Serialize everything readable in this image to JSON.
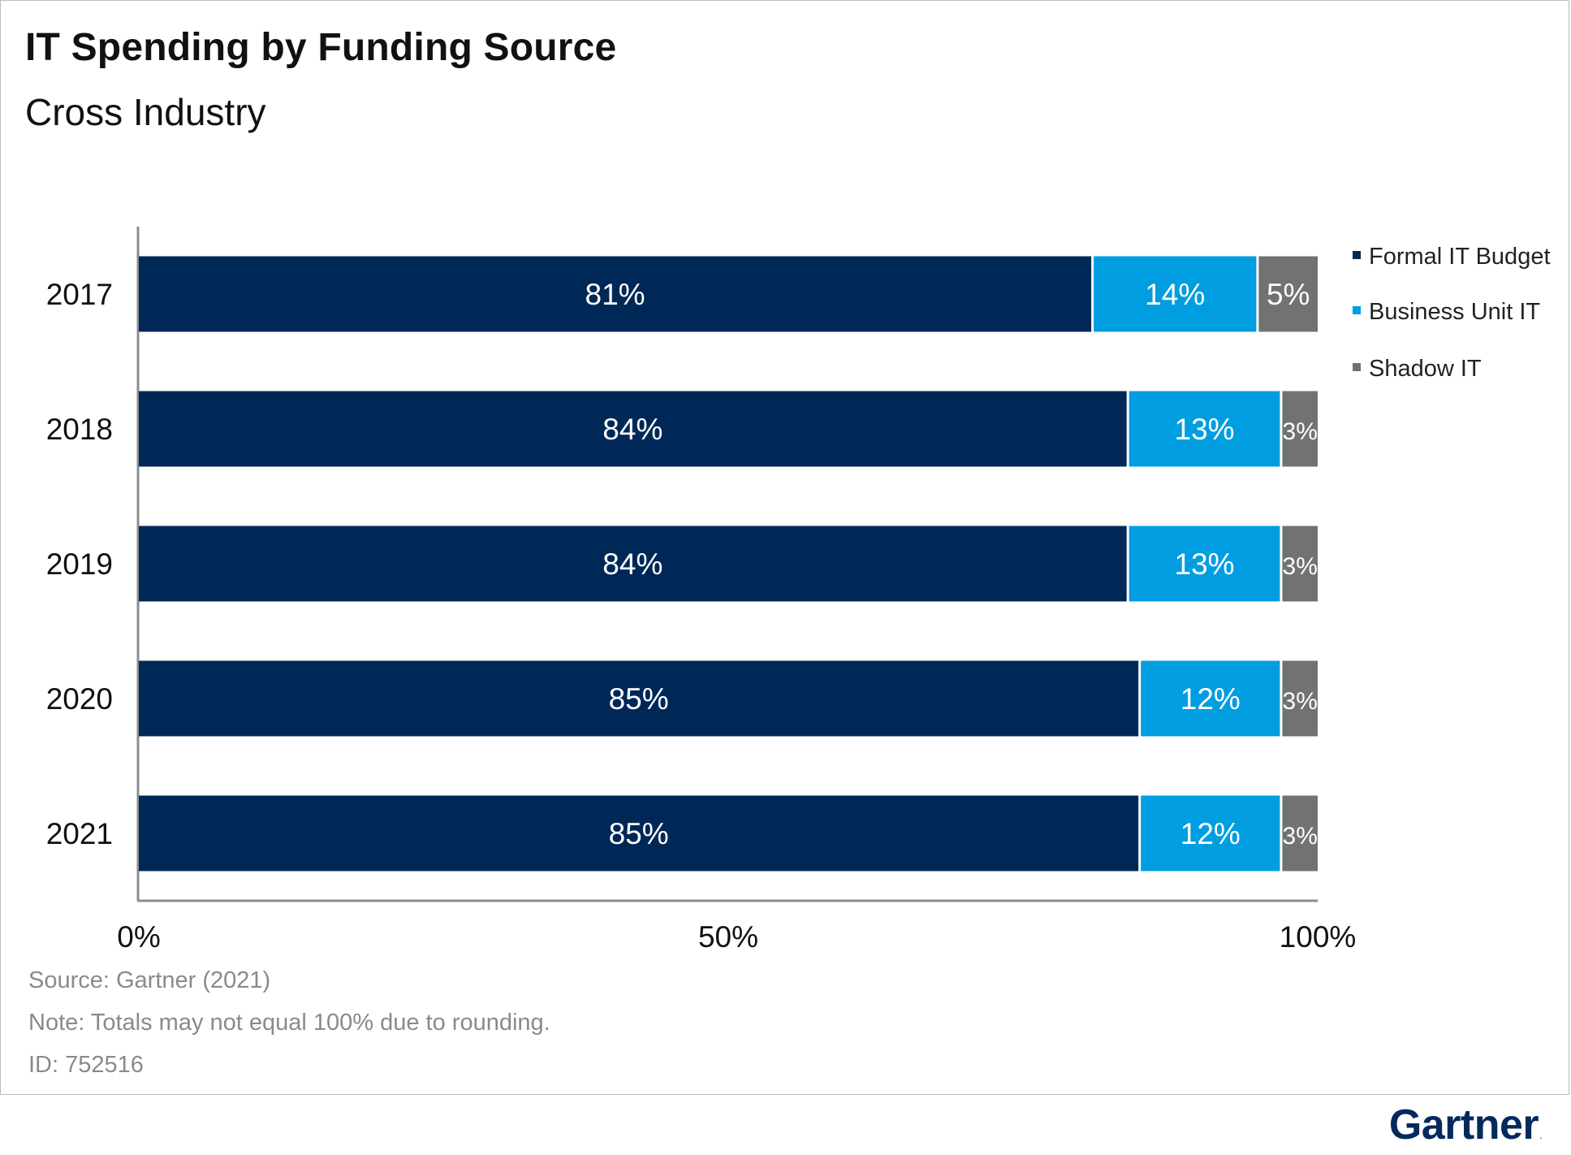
{
  "title": "IT Spending by Funding Source",
  "subtitle": "Cross Industry",
  "footer": {
    "source": "Source: Gartner (2021)",
    "note": "Note: Totals may not equal 100% due to rounding.",
    "id": "ID: 752516"
  },
  "logo": {
    "text": "Gartner",
    "mark": "."
  },
  "colors": {
    "formal_it_budget": "#002856",
    "business_unit_it": "#009ee0",
    "shadow_it": "#727272",
    "axis": "#8c8c8c"
  },
  "chart_data": {
    "type": "bar",
    "orientation": "horizontal",
    "stacked": true,
    "categories": [
      "2017",
      "2018",
      "2019",
      "2020",
      "2021"
    ],
    "series": [
      {
        "name": "Formal IT Budget",
        "values": [
          81,
          84,
          84,
          85,
          85
        ],
        "labels": [
          "81%",
          "84%",
          "84%",
          "85%",
          "85%"
        ]
      },
      {
        "name": "Business Unit IT",
        "values": [
          14,
          13,
          13,
          12,
          12
        ],
        "labels": [
          "14%",
          "13%",
          "13%",
          "12%",
          "12%"
        ]
      },
      {
        "name": "Shadow IT",
        "values": [
          5,
          3,
          3,
          3,
          3
        ],
        "labels": [
          "5%",
          "3%",
          "3%",
          "3%",
          "3%"
        ]
      }
    ],
    "xlim": [
      0,
      100
    ],
    "xticks": [
      "0%",
      "50%",
      "100%"
    ],
    "grid": false,
    "legend_position": "right"
  }
}
